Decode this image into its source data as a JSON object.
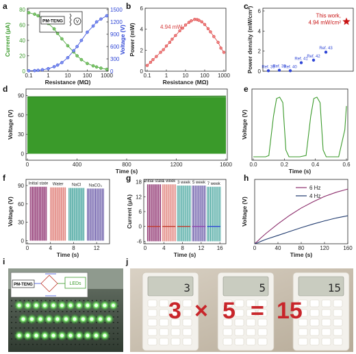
{
  "panels": {
    "a": {
      "letter": "a"
    },
    "b": {
      "letter": "b"
    },
    "c": {
      "letter": "c"
    },
    "d": {
      "letter": "d"
    },
    "e": {
      "letter": "e"
    },
    "f": {
      "letter": "f"
    },
    "g": {
      "letter": "g"
    },
    "h": {
      "letter": "h"
    },
    "i": {
      "letter": "i"
    },
    "j": {
      "letter": "j"
    }
  },
  "colors": {
    "green": "#3a9a2a",
    "blue": "#2f46d6",
    "red": "#d43a3a",
    "star": "#c81414",
    "navy": "#1f3a6e",
    "purple": "#8a2a6a",
    "pink": "#e0807a",
    "teal": "#4aa7a0",
    "violet": "#6a5aa8",
    "led": "#5cff5c",
    "calcText": "#c8252a"
  },
  "chart_data": [
    {
      "id": "a",
      "type": "line",
      "xscale": "log",
      "xlabel": "Resistance (MΩ)",
      "ylabel": "Current (μA)",
      "y2label": "Voltage (V)",
      "xlim": [
        0.1,
        1000
      ],
      "ylim": [
        0,
        80
      ],
      "y2lim": [
        0,
        1500
      ],
      "xticks": [
        "0.1",
        "1",
        "10",
        "100",
        "1000"
      ],
      "yticks": [
        "0",
        "20",
        "40",
        "60",
        "80"
      ],
      "y2ticks": [
        "0",
        "300",
        "600",
        "900",
        "1200",
        "1500"
      ],
      "device_label": "PM-TENG",
      "meter_label": "V",
      "x": [
        0.1,
        0.2,
        0.3,
        0.5,
        1,
        2,
        3,
        5,
        10,
        20,
        30,
        50,
        100,
        200,
        300,
        500,
        1000
      ],
      "series": [
        {
          "name": "Current",
          "axis": "left",
          "values": [
            76,
            74,
            72,
            69,
            62,
            55,
            49,
            42,
            33,
            25,
            20,
            15,
            10,
            7,
            5.5,
            4,
            2.5
          ]
        },
        {
          "name": "Voltage",
          "axis": "right",
          "values": [
            10,
            15,
            22,
            35,
            62,
            110,
            150,
            210,
            330,
            500,
            600,
            750,
            950,
            1100,
            1200,
            1270,
            1350
          ]
        }
      ]
    },
    {
      "id": "b",
      "type": "line",
      "xscale": "log",
      "xlabel": "Resistance (MΩ)",
      "ylabel": "Power (mW)",
      "xlim": [
        0.1,
        1000
      ],
      "ylim": [
        0,
        6
      ],
      "xticks": [
        "0.1",
        "1",
        "10",
        "100",
        "1000"
      ],
      "yticks": [
        "0",
        "2",
        "4",
        "6"
      ],
      "annotation": "4.94 mW",
      "x": [
        0.1,
        0.15,
        0.2,
        0.3,
        0.5,
        0.7,
        1,
        1.5,
        2,
        3,
        5,
        7,
        10,
        15,
        20,
        30,
        40,
        50,
        70,
        100,
        150,
        200,
        300,
        500,
        700,
        1000
      ],
      "series": [
        {
          "name": "Power",
          "values": [
            0.55,
            0.85,
            1.1,
            1.4,
            1.8,
            2.05,
            2.4,
            2.75,
            3.05,
            3.4,
            3.85,
            4.1,
            4.4,
            4.65,
            4.8,
            4.94,
            4.92,
            4.85,
            4.7,
            4.45,
            4.05,
            3.75,
            3.3,
            2.75,
            2.2,
            1.8
          ]
        }
      ]
    },
    {
      "id": "c",
      "type": "scatter",
      "ylabel": "Power density (mW/cm²)",
      "ylim": [
        0,
        6
      ],
      "yticks": [
        "0",
        "2",
        "4",
        "6"
      ],
      "this_work": {
        "label": "This work,",
        "value_label": "4.94 mW/cm²",
        "value": 4.94
      },
      "refs": [
        {
          "label": "Ref. 39",
          "value": 0.05
        },
        {
          "label": "Ref. 39",
          "value": 0.1
        },
        {
          "label": "Ref. 40",
          "value": 0.05
        },
        {
          "label": "Ref. 41",
          "value": 0.85
        },
        {
          "label": "Ref. 42",
          "value": 1.1
        },
        {
          "label": "Ref. 43",
          "value": 1.9
        }
      ]
    },
    {
      "id": "d",
      "type": "area",
      "xlabel": "Time (s)",
      "ylabel": "Voltage (V)",
      "xlim": [
        0,
        1600
      ],
      "ylim": [
        -10,
        100
      ],
      "xticks": [
        "0",
        "400",
        "800",
        "1200",
        "1600"
      ],
      "yticks": [
        "0",
        "30",
        "60",
        "90"
      ],
      "series": [
        {
          "name": "Voltage",
          "max": 88,
          "min": 0
        }
      ]
    },
    {
      "id": "e",
      "type": "line",
      "xlabel": "Time (s)",
      "ylabel": "Voltage (V)",
      "xlim": [
        0,
        0.6
      ],
      "ylim": [
        -5,
        100
      ],
      "xticks": [
        "0.0",
        "0.2",
        "0.4",
        "0.6"
      ],
      "x": [
        0,
        0.08,
        0.1,
        0.13,
        0.15,
        0.17,
        0.19,
        0.21,
        0.23,
        0.3,
        0.34,
        0.37,
        0.39,
        0.41,
        0.43,
        0.45,
        0.47,
        0.55,
        0.59,
        0.6
      ],
      "series": [
        {
          "name": "Voltage",
          "values": [
            0,
            0,
            2,
            60,
            86,
            88,
            80,
            10,
            0,
            0,
            2,
            60,
            86,
            88,
            80,
            10,
            0,
            0,
            40,
            75
          ]
        }
      ]
    },
    {
      "id": "f",
      "type": "bar",
      "xlabel": "Time (s)",
      "ylabel": "Voltage (V)",
      "xlim": [
        0,
        14
      ],
      "ylim": [
        -5,
        100
      ],
      "xticks": [
        "0",
        "4",
        "8",
        "12"
      ],
      "yticks": [
        "0",
        "30",
        "60",
        "90"
      ],
      "series": [
        {
          "name": "Initial state",
          "start": 0.5,
          "end": 3.3,
          "amplitude": 88
        },
        {
          "name": "Water",
          "start": 4.0,
          "end": 6.6,
          "amplitude": 87
        },
        {
          "name": "NaCl",
          "start": 7.2,
          "end": 9.8,
          "amplitude": 86
        },
        {
          "name": "NaCO₃",
          "start": 10.4,
          "end": 13.2,
          "amplitude": 85
        }
      ]
    },
    {
      "id": "g",
      "type": "bar",
      "xlabel": "Time (s)",
      "ylabel": "Current (μA)",
      "xlim": [
        0,
        17
      ],
      "ylim": [
        -7,
        19
      ],
      "xticks": [
        "0",
        "4",
        "8",
        "12",
        "16"
      ],
      "yticks": [
        "-6",
        "0",
        "6",
        "12",
        "18"
      ],
      "series": [
        {
          "name": "Initial state",
          "start": 0.5,
          "end": 3.3,
          "max": 17,
          "min": -6
        },
        {
          "name": "1 week",
          "start": 3.7,
          "end": 6.5,
          "max": 17,
          "min": -6
        },
        {
          "name": "3 week",
          "start": 6.9,
          "end": 9.7,
          "max": 16.5,
          "min": -6
        },
        {
          "name": "5 week",
          "start": 10.1,
          "end": 12.9,
          "max": 16.5,
          "min": -6
        },
        {
          "name": "7 week",
          "start": 13.3,
          "end": 16.1,
          "max": 16,
          "min": -6
        }
      ]
    },
    {
      "id": "h",
      "type": "line",
      "xlabel": "Time (s)",
      "ylabel": "Voltage (V)",
      "xlim": [
        0,
        160
      ],
      "ylim": [
        0,
        20
      ],
      "xticks": [
        "0",
        "40",
        "80",
        "120",
        "160"
      ],
      "yticks": [
        "0",
        "5",
        "10",
        "15",
        "20"
      ],
      "x": [
        0,
        5,
        10,
        20,
        40,
        60,
        80,
        100,
        120,
        140,
        160
      ],
      "series": [
        {
          "name": "6 Hz",
          "values": [
            0,
            0.8,
            1.7,
            3.3,
            6.2,
            8.8,
            11.1,
            13,
            14.7,
            16,
            17
          ]
        },
        {
          "name": "4 Hz",
          "values": [
            0,
            0.3,
            0.7,
            1.4,
            2.6,
            3.8,
            5,
            6.1,
            7.1,
            8,
            8.7
          ]
        }
      ]
    }
  ],
  "photo_i": {
    "device_label": "PM-TENG",
    "led_label": "LEDs"
  },
  "photo_j": {
    "displays": [
      "3",
      "5",
      "15"
    ],
    "equation": {
      "a": "3",
      "op": "×",
      "b": "5",
      "eq": "=",
      "c": "15"
    }
  }
}
